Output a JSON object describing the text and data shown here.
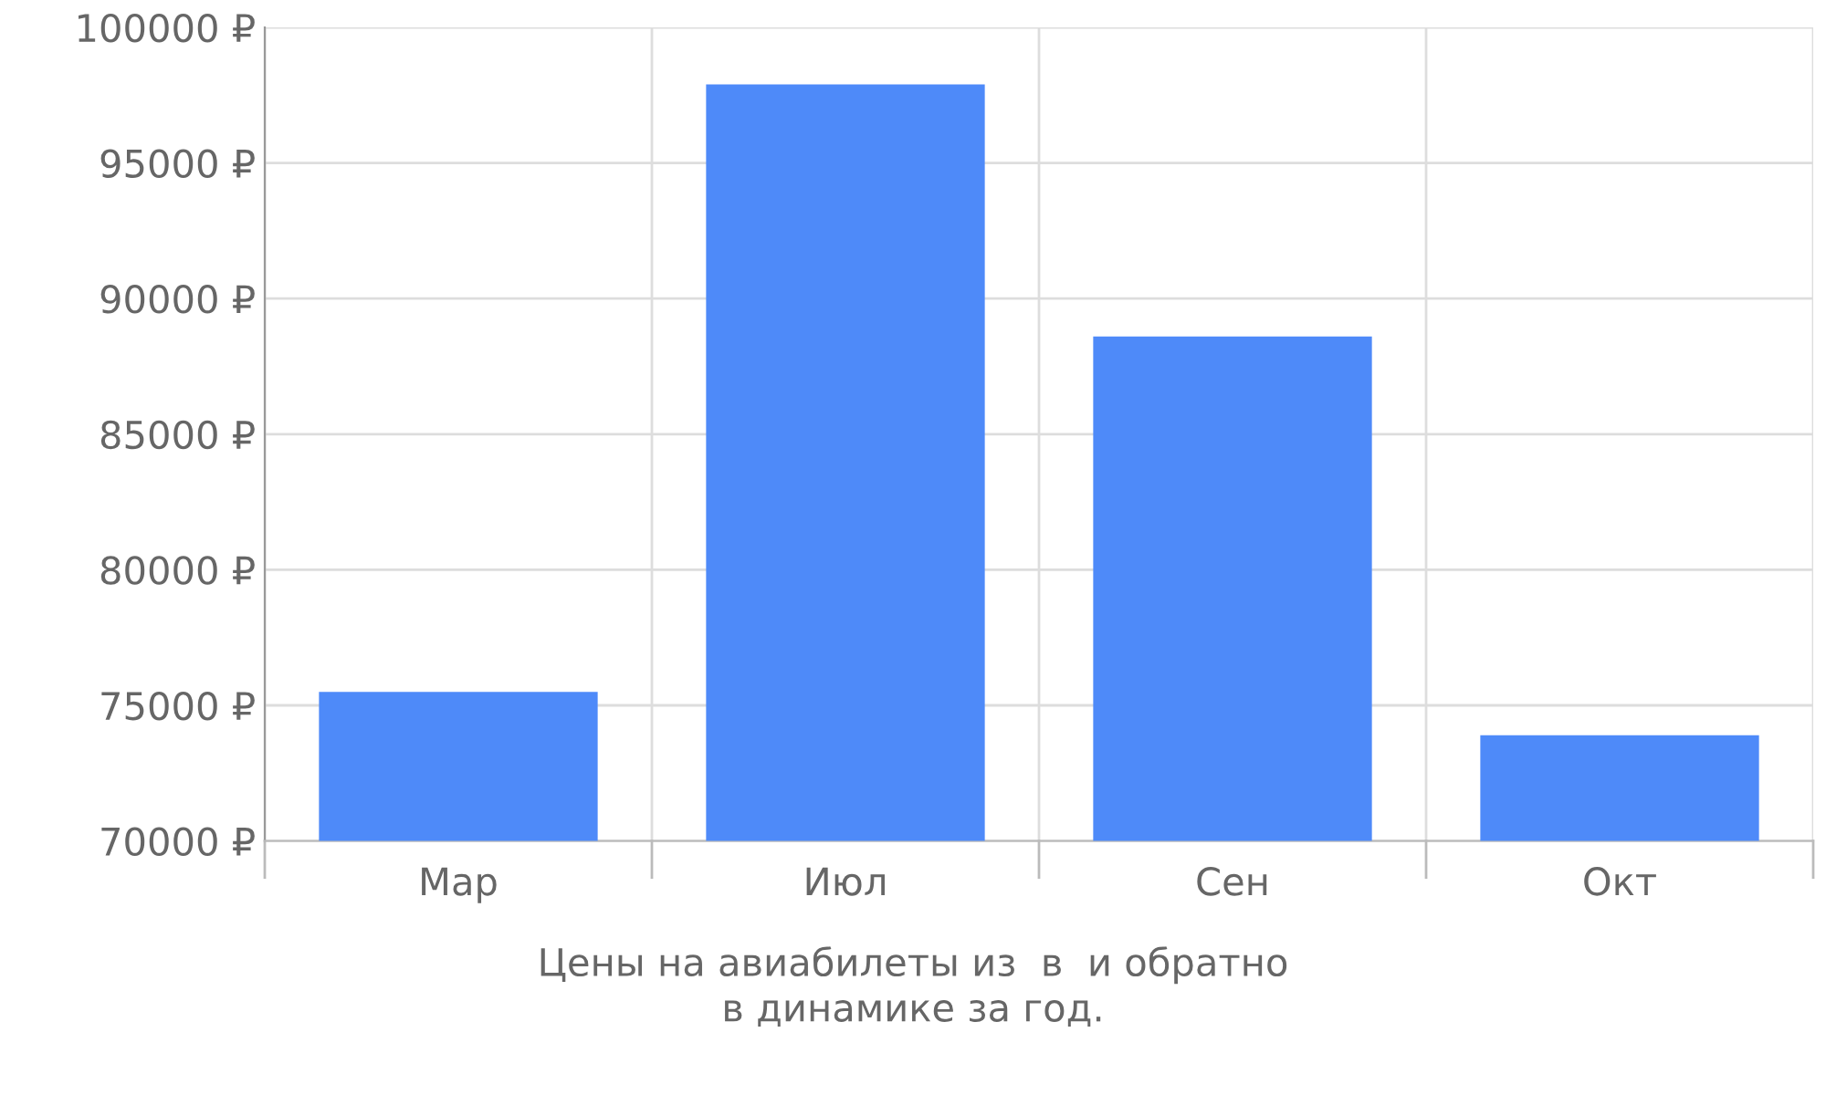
{
  "chart_data": {
    "type": "bar",
    "categories": [
      "Мар",
      "Июл",
      "Сен",
      "Окт"
    ],
    "values": [
      75500,
      97900,
      88600,
      73900
    ],
    "color": "#4e8af9",
    "ylim": [
      70000,
      100000
    ],
    "yticks": [
      {
        "value": 70000,
        "label": "70000 ₽"
      },
      {
        "value": 75000,
        "label": "75000 ₽"
      },
      {
        "value": 80000,
        "label": "80000 ₽"
      },
      {
        "value": 85000,
        "label": "85000 ₽"
      },
      {
        "value": 90000,
        "label": "90000 ₽"
      },
      {
        "value": 95000,
        "label": "95000 ₽"
      },
      {
        "value": 100000,
        "label": "100000 ₽"
      }
    ],
    "grid": true,
    "annotations": [
      "Цены на авиабилеты из  в  и обратно\nв динамике за год."
    ]
  }
}
